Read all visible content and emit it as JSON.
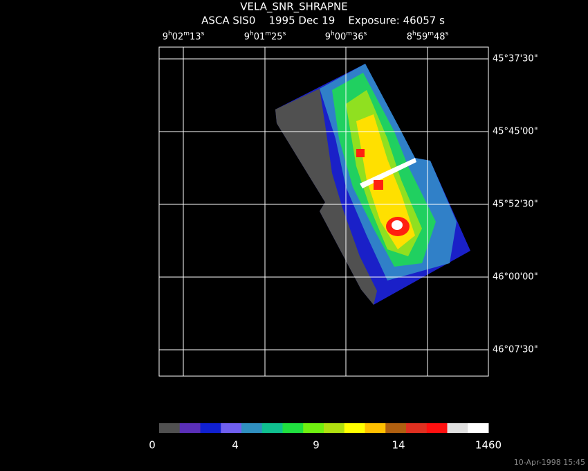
{
  "header": {
    "title": "VELA_SNR_SHRAPNE",
    "subtitle": "ASCA SIS0    1995 Dec 19    Exposure: 46057 s"
  },
  "ra_labels": [
    "9h02m13s",
    "9h01m25s",
    "9h00m36s",
    "8h59m48s"
  ],
  "dec_labels": [
    "45°37'30\"",
    "45°45'00\"",
    "45°52'30\"",
    "46°00'00\"",
    "46°07'30\""
  ],
  "colorbar": {
    "colors": [
      "#505050",
      "#5a2fb8",
      "#1020d0",
      "#7060f0",
      "#3090c0",
      "#10c090",
      "#20e040",
      "#70f010",
      "#b0e010",
      "#ffff00",
      "#ffc000",
      "#b06010",
      "#e03020",
      "#ff1010",
      "#e0e0e0",
      "#ffffff"
    ],
    "labels": [
      "0",
      "4",
      "9",
      "14",
      "1460"
    ]
  },
  "timestamp": "10-Apr-1998 15:45"
}
